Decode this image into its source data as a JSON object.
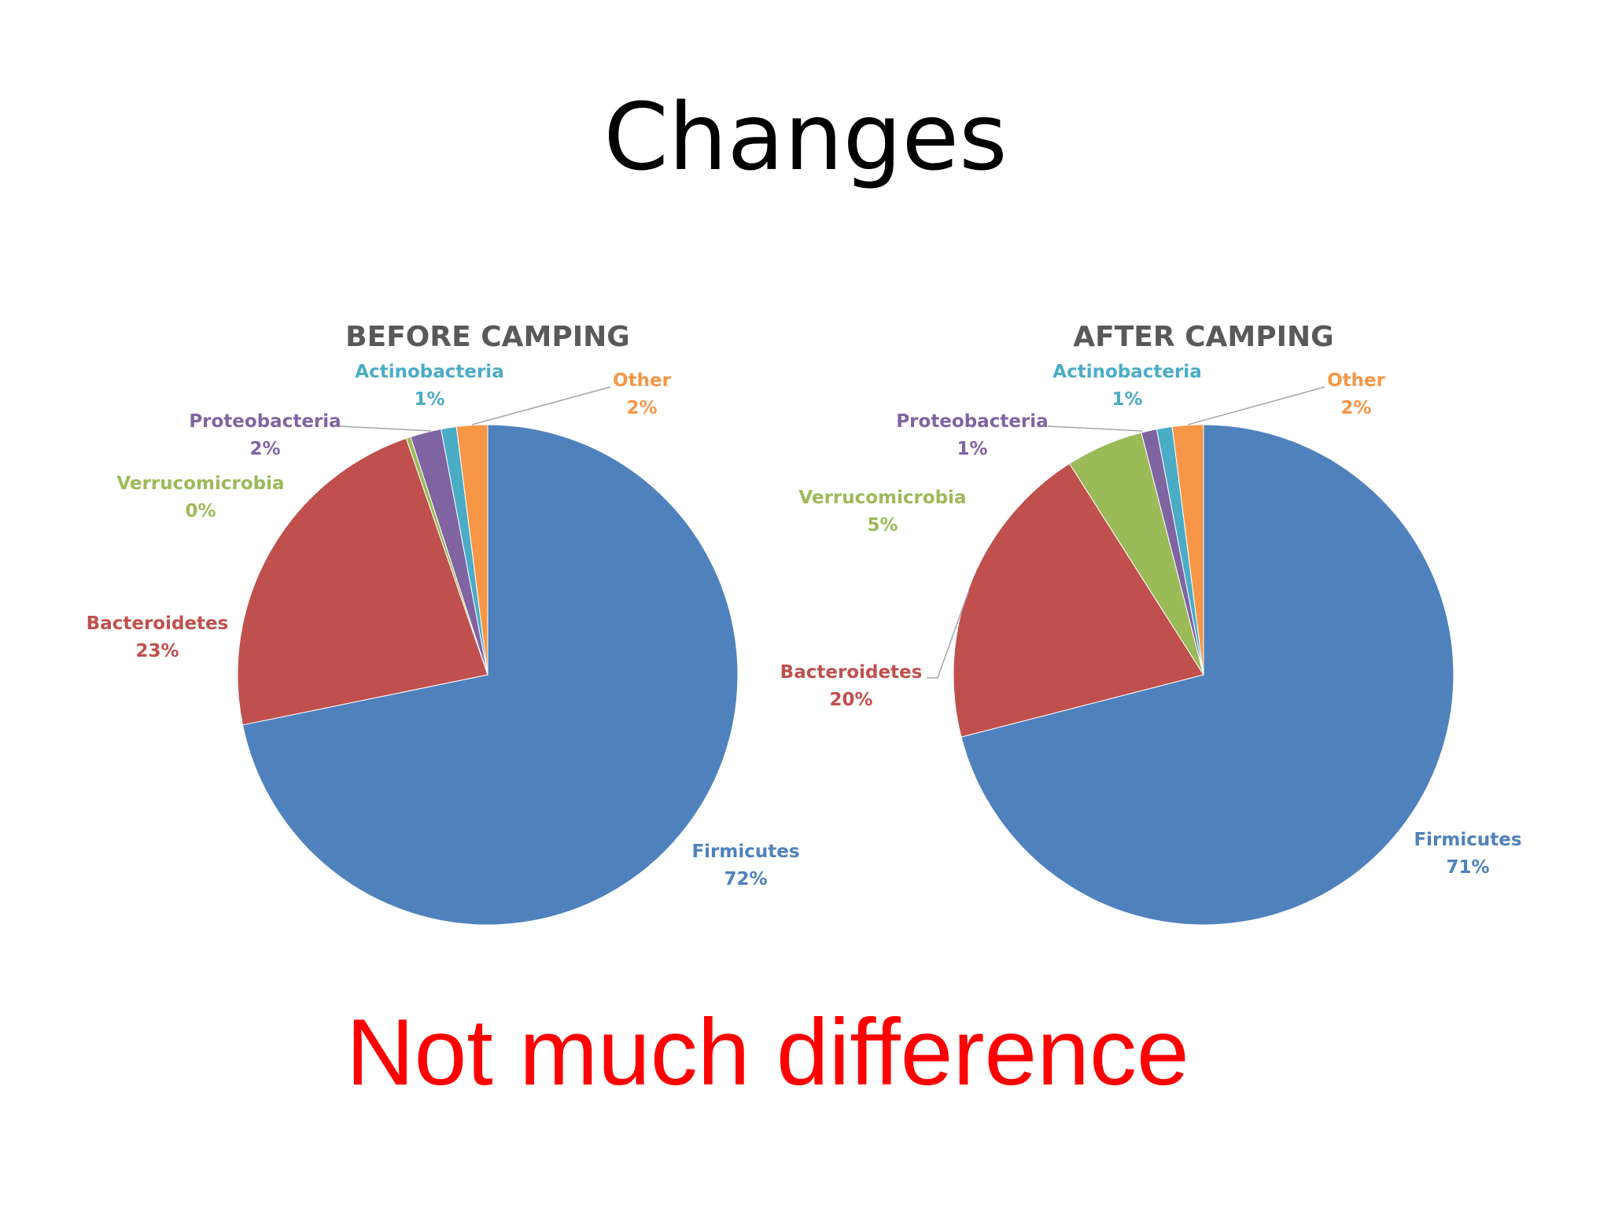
{
  "slide": {
    "title": "Changes",
    "note": "Not much difference",
    "note_color": "#ff0000"
  },
  "chart_data": [
    {
      "type": "pie",
      "title": "BEFORE CAMPING",
      "categories": [
        "Firmicutes",
        "Bacteroidetes",
        "Verrucomicrobia",
        "Proteobacteria",
        "Actinobacteria",
        "Other"
      ],
      "values": [
        72,
        23,
        0.3,
        2,
        1,
        2
      ],
      "labels": [
        "72%",
        "23%",
        "0%",
        "2%",
        "1%",
        "2%"
      ],
      "colors": [
        "#4f81bd",
        "#c0504d",
        "#9bbb59",
        "#8064a2",
        "#4bacc6",
        "#f79646"
      ]
    },
    {
      "type": "pie",
      "title": "AFTER CAMPING",
      "categories": [
        "Firmicutes",
        "Bacteroidetes",
        "Verrucomicrobia",
        "Proteobacteria",
        "Actinobacteria",
        "Other"
      ],
      "values": [
        71,
        20,
        5,
        1,
        1,
        2
      ],
      "labels": [
        "71%",
        "20%",
        "5%",
        "1%",
        "1%",
        "2%"
      ],
      "colors": [
        "#4f81bd",
        "#c0504d",
        "#9bbb59",
        "#8064a2",
        "#4bacc6",
        "#f79646"
      ]
    }
  ]
}
